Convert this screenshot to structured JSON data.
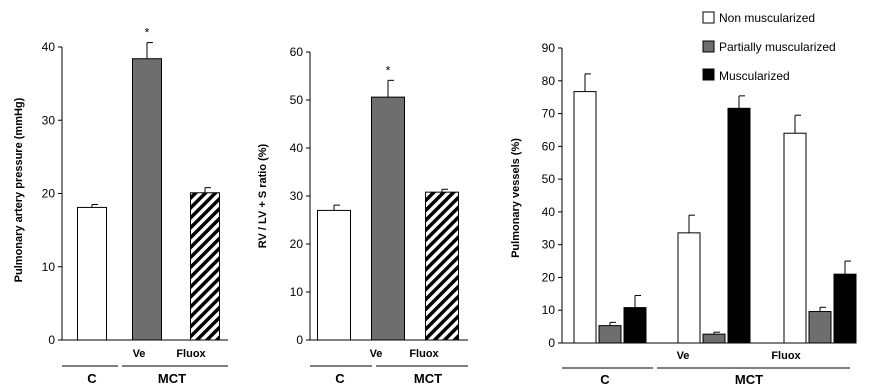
{
  "colors": {
    "control": "#ffffff",
    "vehicle": "#6e6e6e",
    "non_muscularized": "#ffffff",
    "partially_muscularized": "#6e6e6e",
    "muscularized": "#000000",
    "outline": "#000000"
  },
  "legend": {
    "items": [
      {
        "label": "Non muscularized",
        "fill": "#ffffff"
      },
      {
        "label": "Partially muscularized",
        "fill": "#6e6e6e"
      },
      {
        "label": "Muscularized",
        "fill": "#000000"
      }
    ],
    "placement": "top-right"
  },
  "groups": {
    "control": "C",
    "mct": "MCT",
    "vehicle": "Ve",
    "fluoxetine": "Fluox"
  },
  "chart_data": [
    {
      "type": "bar",
      "ylabel": "Pulmonary artery pressure (mmHg)",
      "ylim": [
        0,
        40
      ],
      "yticks": [
        0,
        10,
        20,
        30,
        40
      ],
      "categories": [
        "C",
        "Ve",
        "Fluox"
      ],
      "values": [
        18.1,
        38.4,
        20.1
      ],
      "errors": [
        0.4,
        2.2,
        0.7
      ],
      "fills": [
        "white",
        "gray",
        "hatched"
      ],
      "annotations": [
        "",
        "*",
        ""
      ]
    },
    {
      "type": "bar",
      "ylabel": "RV / LV + S ratio (%)",
      "ylim": [
        0,
        60
      ],
      "yticks": [
        0,
        10,
        20,
        30,
        40,
        50,
        60
      ],
      "categories": [
        "C",
        "Ve",
        "Fluox"
      ],
      "values": [
        27.0,
        50.6,
        30.8
      ],
      "errors": [
        1.1,
        3.5,
        0.6
      ],
      "fills": [
        "white",
        "gray",
        "hatched"
      ],
      "annotations": [
        "",
        "*",
        ""
      ]
    },
    {
      "type": "bar",
      "ylabel": "Pulmonary vessels (%)",
      "ylim": [
        0,
        90
      ],
      "yticks": [
        0,
        10,
        20,
        30,
        40,
        50,
        60,
        70,
        80,
        90
      ],
      "categories": [
        "C",
        "Ve",
        "Fluox"
      ],
      "series": [
        {
          "name": "Non muscularized",
          "values": [
            76.7,
            33.6,
            64.0
          ],
          "errors": [
            5.4,
            5.4,
            5.5
          ]
        },
        {
          "name": "Partially muscularized",
          "values": [
            5.3,
            2.7,
            9.6
          ],
          "errors": [
            1.0,
            0.6,
            1.3
          ]
        },
        {
          "name": "Muscularized",
          "values": [
            10.8,
            71.6,
            21.0
          ],
          "errors": [
            3.7,
            3.8,
            4.0
          ]
        }
      ]
    }
  ]
}
